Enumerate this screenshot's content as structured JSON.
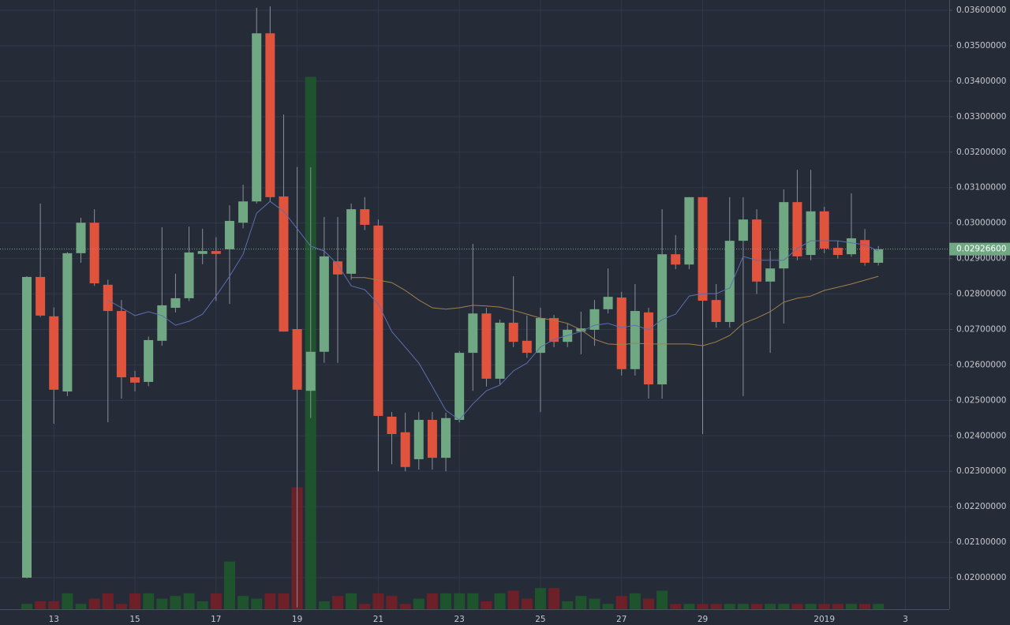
{
  "chart_data": {
    "type": "candlestick",
    "categories": [
      null,
      null,
      "13",
      null,
      null,
      null,
      null,
      null,
      "15",
      null,
      null,
      null,
      null,
      null,
      "17",
      null,
      null,
      null,
      null,
      null,
      "19",
      null,
      null,
      null,
      null,
      null,
      "21",
      null,
      null,
      null,
      null,
      null,
      "23",
      null,
      null,
      null,
      null,
      null,
      "25",
      null,
      null,
      null,
      null,
      null,
      "27",
      null,
      null,
      null,
      null,
      null,
      "29",
      null,
      null,
      null,
      null,
      null,
      null,
      null,
      null,
      "2019",
      null,
      null,
      null,
      null,
      null,
      "3"
    ],
    "open": [
      0.02,
      0.02848,
      0.02737,
      0.02525,
      0.02915,
      0.03001,
      0.02826,
      0.02752,
      0.02565,
      0.02552,
      0.02668,
      0.02761,
      0.02788,
      0.02913,
      0.02921,
      0.02926,
      0.03001,
      0.03061,
      0.03535,
      0.03075,
      0.02701,
      0.02527,
      0.02637,
      0.02892,
      0.02857,
      0.03039,
      0.02993,
      0.02454,
      0.0241,
      0.02334,
      0.02445,
      0.02338,
      0.02445,
      0.02634,
      0.02745,
      0.02561,
      0.02719,
      0.02668,
      0.02634,
      0.02732,
      0.02665,
      0.02694,
      0.02699,
      0.02757,
      0.0279,
      0.02588,
      0.02748,
      0.02545,
      0.02912,
      0.02883,
      0.03073,
      0.02783,
      0.02721,
      0.0295,
      0.0301,
      0.02835,
      0.02872,
      0.03059,
      0.0291,
      0.03033,
      0.0293,
      0.02912,
      0.02952,
      0.02888,
      null,
      null
    ],
    "high": [
      0.0285,
      0.03055,
      0.02762,
      0.02918,
      0.03015,
      0.03039,
      0.0284,
      0.02783,
      0.02583,
      0.0268,
      0.02988,
      0.02857,
      0.0299,
      0.02984,
      0.0296,
      0.0305,
      0.03108,
      0.03607,
      0.03611,
      0.03306,
      0.03158,
      0.03157,
      0.03017,
      0.03017,
      0.03055,
      0.03073,
      0.0301,
      0.02467,
      0.02465,
      0.02467,
      0.02467,
      0.02465,
      0.02639,
      0.02941,
      0.02761,
      0.02728,
      0.0285,
      0.02739,
      0.02761,
      0.02741,
      0.02717,
      0.0275,
      0.02783,
      0.02872,
      0.02806,
      0.02828,
      0.02761,
      0.03039,
      0.02966,
      0.03073,
      0.03073,
      0.02828,
      0.03073,
      0.03073,
      0.03039,
      0.02921,
      0.03095,
      0.0315,
      0.0315,
      0.03046,
      0.0295,
      0.03084,
      0.02983,
      0.02935,
      null,
      null
    ],
    "low": [
      0.01998,
      0.02735,
      0.02434,
      0.02512,
      0.02888,
      0.02823,
      0.02438,
      0.02505,
      0.02525,
      0.0254,
      0.02654,
      0.02748,
      0.0278,
      0.02884,
      0.0278,
      0.02772,
      0.02985,
      0.03055,
      0.03061,
      0.02694,
      0.01916,
      0.0245,
      0.02606,
      0.02606,
      0.0284,
      0.0298,
      0.023,
      0.0232,
      0.023,
      0.02305,
      0.02305,
      0.023,
      0.02438,
      0.02527,
      0.02539,
      0.02545,
      0.0265,
      0.0262,
      0.02467,
      0.0265,
      0.0265,
      0.0263,
      0.02654,
      0.02745,
      0.0257,
      0.0257,
      0.02505,
      0.02505,
      0.0287,
      0.0287,
      0.02405,
      0.02705,
      0.02705,
      0.02512,
      0.028,
      0.02634,
      0.02717,
      0.02895,
      0.02895,
      0.02915,
      0.029,
      0.02905,
      0.0288,
      0.0288,
      null,
      null
    ],
    "close": [
      0.02848,
      0.02739,
      0.0253,
      0.02915,
      0.03001,
      0.0283,
      0.02752,
      0.02565,
      0.0255,
      0.0267,
      0.02768,
      0.02788,
      0.02917,
      0.02921,
      0.02913,
      0.03006,
      0.03061,
      0.03535,
      0.03073,
      0.02694,
      0.0253,
      0.02637,
      0.02906,
      0.02855,
      0.03039,
      0.02995,
      0.02456,
      0.02405,
      0.02312,
      0.02445,
      0.02338,
      0.0245,
      0.02634,
      0.02745,
      0.02561,
      0.02719,
      0.02665,
      0.02634,
      0.02732,
      0.02665,
      0.02699,
      0.02703,
      0.02757,
      0.02792,
      0.02588,
      0.02752,
      0.02545,
      0.02912,
      0.02883,
      0.03073,
      0.02781,
      0.02721,
      0.0295,
      0.0301,
      0.02835,
      0.02872,
      0.03059,
      0.02906,
      0.03033,
      0.02928,
      0.0291,
      0.02957,
      0.02888,
      0.02926,
      null,
      null
    ],
    "up_color": "#6fa882",
    "down_color": "#e0533d",
    "ma_lines": [
      {
        "color": "#5b6fb0",
        "values": [
          null,
          null,
          null,
          null,
          null,
          null,
          0.02783,
          0.02761,
          0.02739,
          0.0275,
          0.02739,
          0.02712,
          0.02723,
          0.02743,
          0.02794,
          0.0285,
          0.02912,
          0.03028,
          0.03061,
          0.03033,
          0.02984,
          0.02935,
          0.02921,
          0.02883,
          0.02823,
          0.02812,
          0.02772,
          0.02694,
          0.0265,
          0.02605,
          0.02539,
          0.02472,
          0.02445,
          0.0249,
          0.02527,
          0.02543,
          0.02583,
          0.02605,
          0.0265,
          0.02672,
          0.02683,
          0.02694,
          0.02712,
          0.02717,
          0.02705,
          0.02712,
          0.02699,
          0.02728,
          0.02743,
          0.02794,
          0.02801,
          0.02801,
          0.02817,
          0.02906,
          0.02895,
          0.02895,
          0.02895,
          0.02928,
          0.0295,
          0.0295,
          0.0295,
          0.02944,
          0.02939,
          0.02921,
          null,
          null
        ]
      },
      {
        "color": "#a0824a",
        "values": [
          null,
          null,
          null,
          null,
          null,
          null,
          null,
          null,
          null,
          null,
          null,
          null,
          null,
          null,
          null,
          null,
          null,
          null,
          null,
          null,
          null,
          null,
          null,
          null,
          0.02846,
          0.02846,
          0.02839,
          0.02832,
          0.0281,
          0.02783,
          0.02761,
          0.02757,
          0.02761,
          0.02768,
          0.02766,
          0.02763,
          0.02754,
          0.02743,
          0.02732,
          0.02726,
          0.02717,
          0.02699,
          0.02672,
          0.02659,
          0.02657,
          0.02661,
          0.02659,
          0.02659,
          0.02659,
          0.02659,
          0.02654,
          0.02665,
          0.02683,
          0.02717,
          0.02732,
          0.0275,
          0.02777,
          0.02788,
          0.02794,
          0.0281,
          0.02819,
          0.02828,
          0.02839,
          0.0285,
          null,
          null
        ]
      }
    ],
    "volume": {
      "axis": "y2",
      "up_color": "#1f5a2c",
      "down_color": "#7a1f24",
      "values": [
        2,
        3,
        3,
        6,
        2,
        4,
        6,
        2,
        6,
        6,
        4,
        5,
        6,
        3,
        6,
        18,
        5,
        4,
        6,
        6,
        46,
        201,
        3,
        5,
        6,
        2,
        6,
        5,
        2,
        4,
        6,
        6,
        6,
        6,
        3,
        6,
        7,
        4,
        8,
        8,
        3,
        5,
        4,
        2,
        5,
        6,
        4,
        7,
        2,
        2,
        2,
        2,
        2,
        2,
        2,
        2,
        2,
        2,
        2,
        2,
        2,
        2,
        2,
        2,
        null,
        null
      ]
    },
    "y2lim": [
      0,
      230
    ],
    "ylim": [
      0.01911,
      0.03629
    ],
    "yticks": [
      {
        "value": 0.02,
        "label": "0.02000000"
      },
      {
        "value": 0.021,
        "label": "0.02100000"
      },
      {
        "value": 0.022,
        "label": "0.02200000"
      },
      {
        "value": 0.023,
        "label": "0.02300000"
      },
      {
        "value": 0.024,
        "label": "0.02400000"
      },
      {
        "value": 0.025,
        "label": "0.02500000"
      },
      {
        "value": 0.026,
        "label": "0.02600000"
      },
      {
        "value": 0.027,
        "label": "0.02700000"
      },
      {
        "value": 0.028,
        "label": "0.02800000"
      },
      {
        "value": 0.029,
        "label": "0.02900000"
      },
      {
        "value": 0.03,
        "label": "0.03000000"
      },
      {
        "value": 0.031,
        "label": "0.03100000"
      },
      {
        "value": 0.032,
        "label": "0.03200000"
      },
      {
        "value": 0.033,
        "label": "0.03300000"
      },
      {
        "value": 0.034,
        "label": "0.03400000"
      },
      {
        "value": 0.035,
        "label": "0.03500000"
      },
      {
        "value": 0.036,
        "label": "0.03600000"
      }
    ],
    "last_price": {
      "value": 0.029266,
      "label": "0.02926600",
      "color": "#6fa882"
    },
    "grid": true
  }
}
